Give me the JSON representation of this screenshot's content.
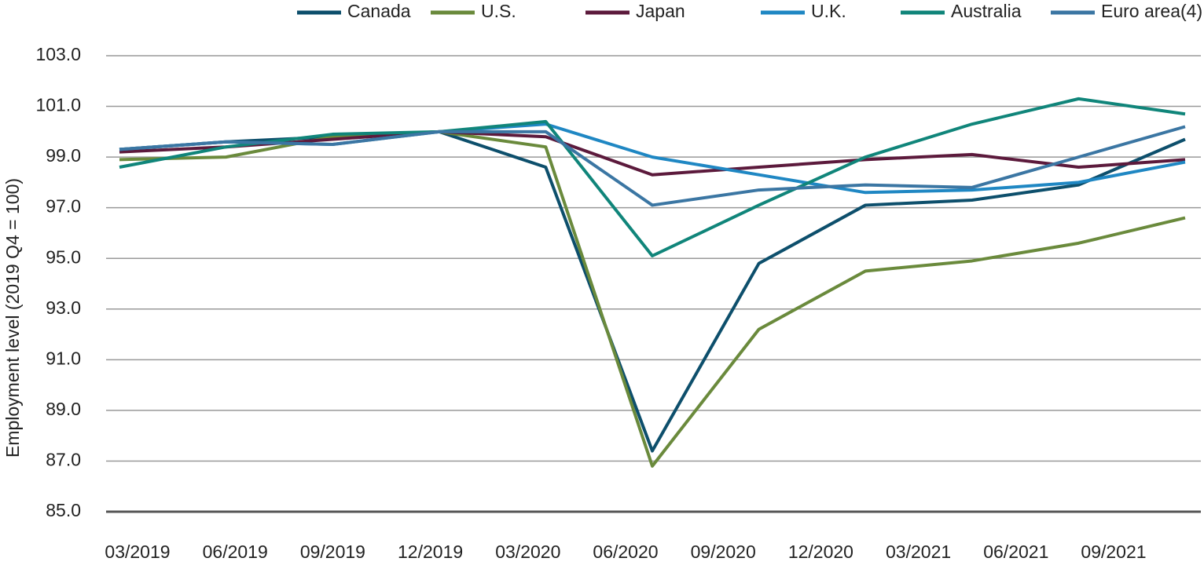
{
  "chart_data": {
    "type": "line",
    "y_label": "Employment level (2019 Q4 = 100)",
    "categories": [
      "03/2019",
      "06/2019",
      "09/2019",
      "12/2019",
      "03/2020",
      "06/2020",
      "09/2020",
      "12/2020",
      "03/2021",
      "06/2021",
      "09/2021"
    ],
    "series": [
      {
        "name": "Canada",
        "color": "#0d4f6c",
        "values": [
          99.3,
          99.6,
          99.8,
          100.0,
          98.6,
          87.4,
          94.8,
          97.1,
          97.3,
          97.9,
          99.7
        ]
      },
      {
        "name": "U.S.",
        "color": "#6a8a3c",
        "values": [
          98.9,
          99.0,
          99.8,
          100.0,
          99.4,
          86.8,
          92.2,
          94.5,
          94.9,
          95.6,
          96.6
        ]
      },
      {
        "name": "Japan",
        "color": "#5c1a3c",
        "values": [
          99.2,
          99.4,
          99.7,
          100.0,
          99.8,
          98.3,
          98.6,
          98.9,
          99.1,
          98.6,
          98.9
        ]
      },
      {
        "name": "U.K.",
        "color": "#1f87c3",
        "values": [
          99.3,
          99.6,
          99.5,
          100.0,
          100.3,
          99.0,
          98.3,
          97.6,
          97.7,
          98.0,
          98.8
        ]
      },
      {
        "name": "Australia",
        "color": "#10857a",
        "values": [
          98.6,
          99.4,
          99.9,
          100.0,
          100.4,
          95.1,
          97.1,
          99.0,
          100.3,
          101.3,
          100.7
        ]
      },
      {
        "name": "Euro area(4)",
        "color": "#3b76a3",
        "values": [
          99.3,
          99.6,
          99.5,
          100.0,
          100.0,
          97.1,
          97.7,
          97.9,
          97.8,
          99.0,
          100.2
        ]
      }
    ],
    "ylim": [
      85,
      103
    ],
    "yticks": [
      {
        "value": 85,
        "label": "85.0"
      },
      {
        "value": 87,
        "label": "87.0"
      },
      {
        "value": 89,
        "label": "89.0"
      },
      {
        "value": 91,
        "label": "91.0"
      },
      {
        "value": 93,
        "label": "93.0"
      },
      {
        "value": 95,
        "label": "95.0"
      },
      {
        "value": 97,
        "label": "97.0"
      },
      {
        "value": 99,
        "label": "99.0"
      },
      {
        "value": 101,
        "label": "101.0"
      },
      {
        "value": 103,
        "label": "103.0"
      }
    ],
    "grid": true,
    "legend": "top"
  }
}
